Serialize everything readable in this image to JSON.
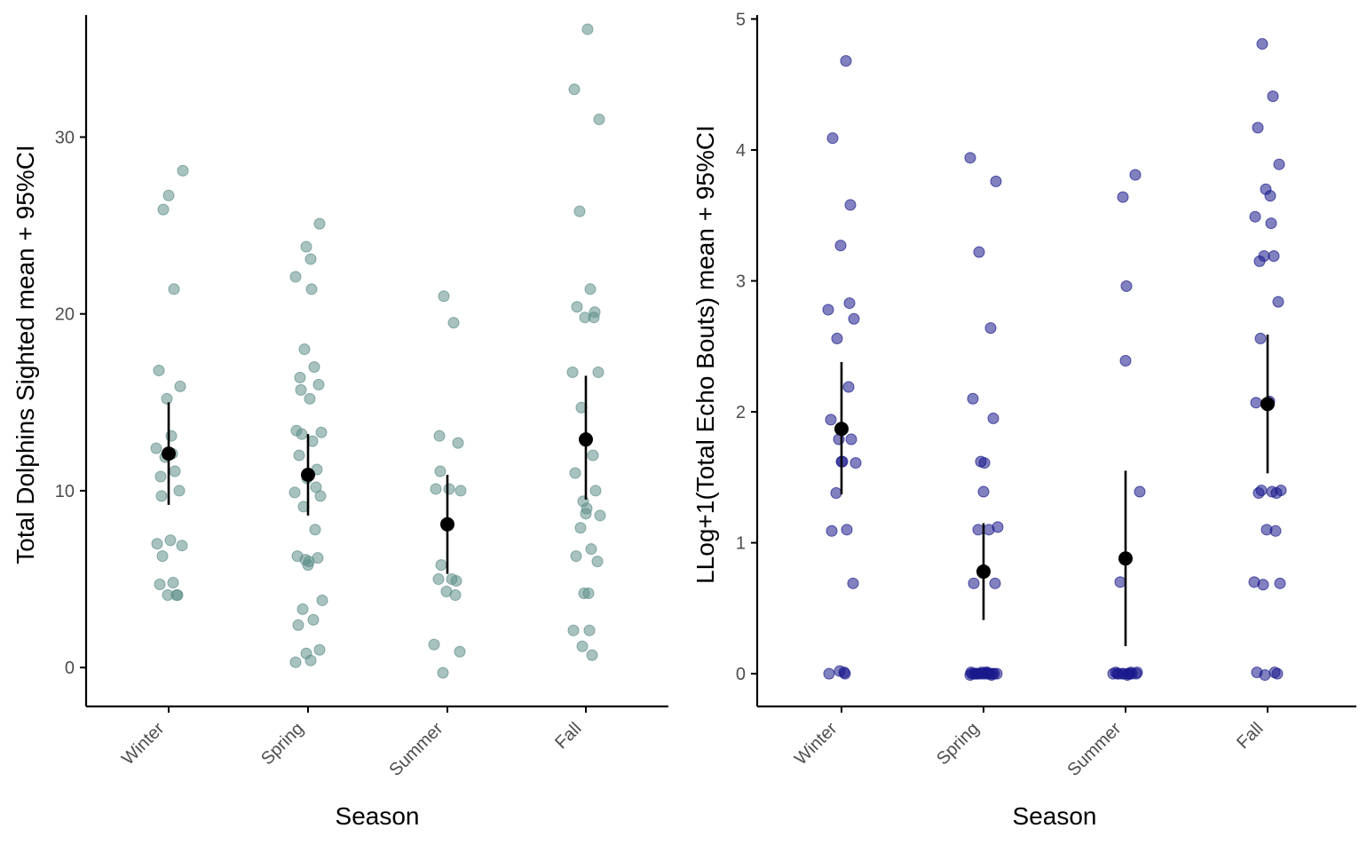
{
  "chart_data": [
    {
      "type": "scatter",
      "xlabel": "Season",
      "ylabel": "Total Dolphins Sighted mean + 95%CI",
      "categories": [
        "Winter",
        "Spring",
        "Summer",
        "Fall"
      ],
      "ylim": [
        -2.2,
        36.9
      ],
      "yticks": [
        0,
        10,
        20,
        30
      ],
      "point_color": "#5f8f8a",
      "grid": false,
      "points": [
        {
          "category": "Winter",
          "values": [
            26.7,
            28.1,
            25.9,
            21.4,
            16.8,
            15.9,
            15.2,
            13.1,
            12.4,
            12.1,
            11.9,
            11.1,
            10.8,
            10.0,
            9.7,
            7.2,
            7.0,
            6.9,
            6.3,
            4.8,
            4.7,
            4.1,
            4.1,
            4.1
          ]
        },
        {
          "category": "Spring",
          "values": [
            25.1,
            23.8,
            23.1,
            22.1,
            21.4,
            18.0,
            17.0,
            16.4,
            16.0,
            15.7,
            15.2,
            13.4,
            13.3,
            13.2,
            12.8,
            12.0,
            11.2,
            10.7,
            10.2,
            9.9,
            9.7,
            9.1,
            7.8,
            6.3,
            6.2,
            6.1,
            6.0,
            5.8,
            3.8,
            3.3,
            2.7,
            2.4,
            1.0,
            0.8,
            0.4,
            0.3
          ]
        },
        {
          "category": "Summer",
          "values": [
            21.0,
            19.5,
            13.1,
            12.7,
            11.1,
            10.1,
            10.1,
            10.0,
            5.8,
            5.0,
            5.0,
            4.9,
            4.3,
            4.1,
            1.3,
            0.9,
            -0.3
          ]
        },
        {
          "category": "Fall",
          "values": [
            36.1,
            32.7,
            31.0,
            25.8,
            21.4,
            20.4,
            20.1,
            19.8,
            19.8,
            16.7,
            16.7,
            14.7,
            12.0,
            11.0,
            10.0,
            9.4,
            9.0,
            8.7,
            8.6,
            7.9,
            6.7,
            6.3,
            6.0,
            4.2,
            4.2,
            2.1,
            2.1,
            1.2,
            0.7
          ]
        }
      ],
      "summary": [
        {
          "category": "Winter",
          "mean": 12.1,
          "ci_low": 9.2,
          "ci_high": 15.0
        },
        {
          "category": "Spring",
          "mean": 10.9,
          "ci_low": 8.6,
          "ci_high": 13.2
        },
        {
          "category": "Summer",
          "mean": 8.1,
          "ci_low": 5.3,
          "ci_high": 10.9
        },
        {
          "category": "Fall",
          "mean": 12.9,
          "ci_low": 9.5,
          "ci_high": 16.5
        }
      ]
    },
    {
      "type": "scatter",
      "xlabel": "Season",
      "ylabel": "LLog+1(Total Echo Bouts) mean + 95%CI",
      "categories": [
        "Winter",
        "Spring",
        "Summer",
        "Fall"
      ],
      "ylim": [
        -0.25,
        5.03
      ],
      "yticks": [
        0,
        1,
        2,
        3,
        4,
        5
      ],
      "point_color": "#1a1a8c",
      "grid": false,
      "points": [
        {
          "category": "Winter",
          "values": [
            4.68,
            4.09,
            3.58,
            3.27,
            2.83,
            2.78,
            2.71,
            2.56,
            2.19,
            1.94,
            1.79,
            1.79,
            1.62,
            1.62,
            1.61,
            1.38,
            1.1,
            1.09,
            0.69,
            0.02,
            0.01,
            0.0,
            0.0
          ]
        },
        {
          "category": "Spring",
          "values": [
            3.94,
            3.76,
            3.22,
            2.64,
            2.1,
            1.95,
            1.62,
            1.61,
            1.39,
            1.12,
            1.1,
            1.1,
            0.69,
            0.69,
            0.01,
            0.01,
            0.01,
            0.01,
            0.0,
            0.0,
            0.0,
            0.0,
            0.0,
            0.0,
            0.0,
            0.0,
            0.0,
            0.0,
            0.0,
            0.0,
            0.0,
            -0.01,
            -0.01
          ]
        },
        {
          "category": "Summer",
          "values": [
            3.81,
            3.64,
            2.96,
            2.39,
            1.39,
            0.7,
            0.01,
            0.01,
            0.01,
            0.0,
            0.0,
            0.0,
            0.0,
            0.0,
            0.0,
            0.0,
            0.0,
            0.0,
            -0.01
          ]
        },
        {
          "category": "Fall",
          "values": [
            4.81,
            4.41,
            4.17,
            3.89,
            3.7,
            3.65,
            3.49,
            3.44,
            3.19,
            3.19,
            3.15,
            2.84,
            2.56,
            2.08,
            2.07,
            1.4,
            1.4,
            1.39,
            1.38,
            1.38,
            1.1,
            1.09,
            0.7,
            0.69,
            0.68,
            0.01,
            0.01,
            0.0,
            -0.01
          ]
        }
      ],
      "summary": [
        {
          "category": "Winter",
          "mean": 1.87,
          "ci_low": 1.37,
          "ci_high": 2.38
        },
        {
          "category": "Spring",
          "mean": 0.78,
          "ci_low": 0.41,
          "ci_high": 1.15
        },
        {
          "category": "Summer",
          "mean": 0.88,
          "ci_low": 0.21,
          "ci_high": 1.55
        },
        {
          "category": "Fall",
          "mean": 2.06,
          "ci_low": 1.53,
          "ci_high": 2.59
        }
      ]
    }
  ]
}
